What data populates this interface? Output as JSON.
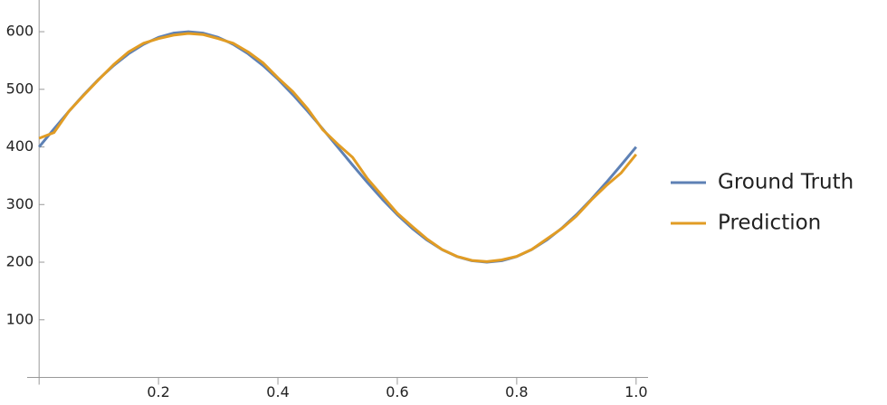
{
  "chart_data": {
    "type": "line",
    "x": [
      0,
      0.025,
      0.05,
      0.075,
      0.1,
      0.125,
      0.15,
      0.175,
      0.2,
      0.225,
      0.25,
      0.275,
      0.3,
      0.325,
      0.35,
      0.375,
      0.4,
      0.425,
      0.45,
      0.475,
      0.5,
      0.525,
      0.55,
      0.575,
      0.6,
      0.625,
      0.65,
      0.675,
      0.7,
      0.725,
      0.75,
      0.775,
      0.8,
      0.825,
      0.85,
      0.875,
      0.9,
      0.925,
      0.95,
      0.975,
      1
    ],
    "series": [
      {
        "name": "Ground Truth",
        "color": "#5e81b5",
        "values": [
          400,
          431.3,
          461.8,
          490.8,
          517.6,
          541.4,
          561.8,
          578.2,
          590.2,
          597.5,
          600,
          597.5,
          590.2,
          578.2,
          561.8,
          541.4,
          517.6,
          490.8,
          461.8,
          431.3,
          400,
          368.7,
          338.2,
          309.2,
          282.4,
          258.6,
          238.2,
          221.8,
          209.8,
          202.5,
          200,
          202.5,
          209.8,
          221.8,
          238.2,
          258.6,
          282.4,
          309.2,
          338.2,
          368.7,
          400
        ]
      },
      {
        "name": "Prediction",
        "color": "#e19c24",
        "values": [
          415,
          425,
          462,
          490,
          517,
          543,
          565,
          580,
          588,
          594,
          597,
          595,
          588,
          580,
          565,
          546,
          520,
          496,
          466,
          430,
          405,
          382,
          345,
          315,
          285,
          262,
          240,
          222,
          210,
          203,
          201,
          204,
          210,
          222,
          240,
          258,
          280,
          308,
          333,
          355,
          387
        ]
      }
    ],
    "xlim": [
      -0.02,
      1.02
    ],
    "ylim": [
      0,
      655
    ],
    "xticks": [
      0.2,
      0.4,
      0.6,
      0.8,
      {
        "value": 1,
        "label": "1.0"
      }
    ],
    "yticks": [
      100,
      200,
      300,
      400,
      500,
      600
    ]
  }
}
